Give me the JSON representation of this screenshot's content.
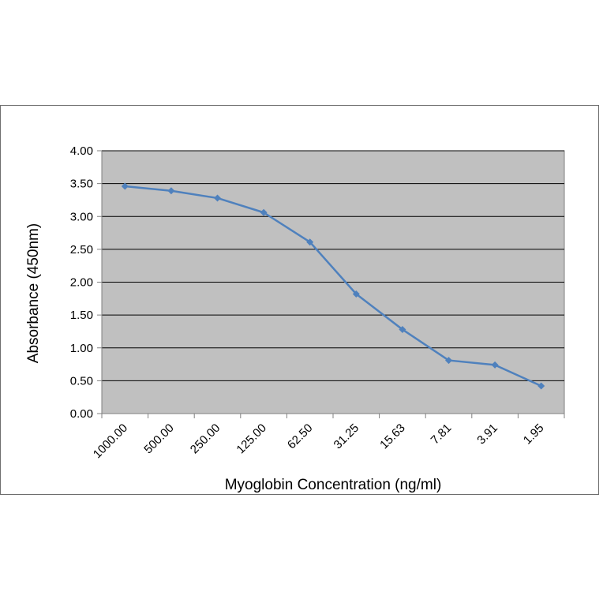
{
  "chart_data": {
    "type": "line",
    "title": "",
    "xlabel": "Myoglobin Concentration (ng/ml)",
    "ylabel": "Absorbance (450nm)",
    "categories": [
      "1000.00",
      "500.00",
      "250.00",
      "125.00",
      "62.50",
      "31.25",
      "15.63",
      "7.81",
      "3.91",
      "1.95"
    ],
    "series": [
      {
        "values": [
          3.46,
          3.39,
          3.28,
          3.06,
          2.61,
          1.82,
          1.28,
          0.81,
          0.74,
          0.42
        ]
      }
    ],
    "ylim": [
      0,
      4
    ],
    "yticks": [
      "0.00",
      "0.50",
      "1.00",
      "1.50",
      "2.00",
      "2.50",
      "3.00",
      "3.50",
      "4.00"
    ],
    "grid": true,
    "legend": "none",
    "colors": {
      "line": "#4f81bd",
      "plot_background": "#c0c0c0",
      "gridline": "#000000"
    }
  }
}
